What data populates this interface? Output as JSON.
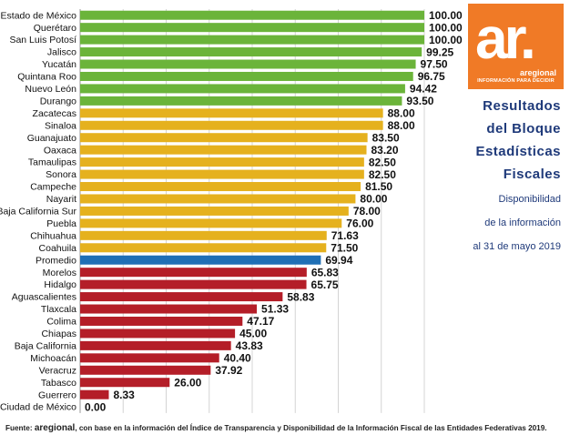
{
  "chart_data": {
    "type": "bar",
    "orientation": "horizontal",
    "categories": [
      "Estado de México",
      "Querétaro",
      "San Luis Potosí",
      "Jalisco",
      "Yucatán",
      "Quintana Roo",
      "Nuevo León",
      "Durango",
      "Zacatecas",
      "Sinaloa",
      "Guanajuato",
      "Oaxaca",
      "Tamaulipas",
      "Sonora",
      "Campeche",
      "Nayarit",
      "Baja California Sur",
      "Puebla",
      "Chihuahua",
      "Coahuila",
      "Promedio",
      "Morelos",
      "Hidalgo",
      "Aguascalientes",
      "Tlaxcala",
      "Colima",
      "Chiapas",
      "Baja California",
      "Michoacán",
      "Veracruz",
      "Tabasco",
      "Guerrero",
      "Ciudad de México"
    ],
    "values": [
      100,
      100,
      100,
      99.25,
      97.5,
      96.75,
      94.42,
      93.5,
      88,
      88,
      83.5,
      83.2,
      82.5,
      82.5,
      81.5,
      80,
      78,
      76,
      71.63,
      71.5,
      69.94,
      65.83,
      65.75,
      58.83,
      51.33,
      47.17,
      45,
      43.83,
      40.4,
      37.92,
      26,
      8.33,
      0
    ],
    "value_labels": [
      "100.00",
      "100.00",
      "100.00",
      "99.25",
      "97.50",
      "96.75",
      "94.42",
      "93.50",
      "88.00",
      "88.00",
      "83.50",
      "83.20",
      "82.50",
      "82.50",
      "81.50",
      "80.00",
      "78.00",
      "76.00",
      "71.63",
      "71.50",
      "69.94",
      "65.83",
      "65.75",
      "58.83",
      "51.33",
      "47.17",
      "45.00",
      "43.83",
      "40.40",
      "37.92",
      "26.00",
      "8.33",
      "0.00"
    ],
    "bar_colors": [
      "#6bb43a",
      "#6bb43a",
      "#6bb43a",
      "#6bb43a",
      "#6bb43a",
      "#6bb43a",
      "#6bb43a",
      "#6bb43a",
      "#e5b11e",
      "#e5b11e",
      "#e5b11e",
      "#e5b11e",
      "#e5b11e",
      "#e5b11e",
      "#e5b11e",
      "#e5b11e",
      "#e5b11e",
      "#e5b11e",
      "#e5b11e",
      "#e5b11e",
      "#1f6fb5",
      "#b41e28",
      "#b41e28",
      "#b41e28",
      "#b41e28",
      "#b41e28",
      "#b41e28",
      "#b41e28",
      "#b41e28",
      "#b41e28",
      "#b41e28",
      "#b41e28",
      "#b41e28"
    ],
    "muted_label_index": 17,
    "xlim": [
      0,
      100
    ],
    "grid": true,
    "title": "",
    "xlabel": "",
    "ylabel": ""
  },
  "logo": {
    "mark": "ar.",
    "name": "aregional",
    "tagline": "INFORMACIÓN PARA DECIDIR",
    "color": "#f07a26"
  },
  "side": {
    "title_lines": [
      "Resultados",
      "del Bloque",
      "Estadísticas",
      "Fiscales"
    ],
    "subtitle_lines": [
      "Disponibilidad",
      "de la información",
      "al 31 de mayo 2019"
    ],
    "color": "#1f3a7a"
  },
  "source": {
    "prefix": "Fuente: ",
    "brand": "aregional",
    "text": ", con base en la información del Índice de Transparencia y Disponibilidad de la Información Fiscal de las Entidades Federativas 2019."
  }
}
